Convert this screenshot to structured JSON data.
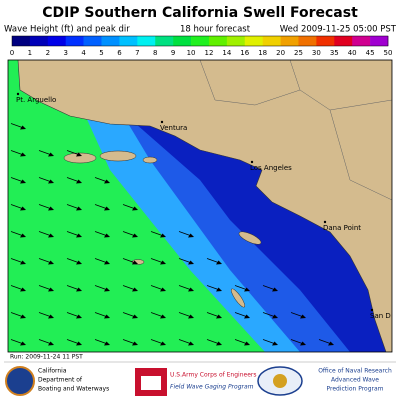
{
  "header": {
    "title": "CDIP Southern California Swell Forecast",
    "subtitle": "Wave Height (ft) and peak dir",
    "forecast_hour": "18 hour forecast",
    "valid_time": "Wed 2009-11-25 05:00 PST"
  },
  "legend": {
    "ticks": [
      0,
      1,
      2,
      3,
      4,
      5,
      6,
      7,
      8,
      9,
      10,
      12,
      14,
      16,
      18,
      20,
      25,
      30,
      35,
      40,
      45,
      50
    ],
    "colors": [
      "#000080",
      "#0000b8",
      "#0000e8",
      "#0030ff",
      "#0060ff",
      "#0090ff",
      "#00c0ff",
      "#00f0f0",
      "#00e080",
      "#00e040",
      "#20f020",
      "#60f000",
      "#a0f000",
      "#e0f000",
      "#f0d000",
      "#f0a000",
      "#f07000",
      "#f03000",
      "#e00020",
      "#d00090",
      "#a000d0"
    ]
  },
  "map": {
    "places": [
      "Pt. Arguello",
      "Ventura",
      "Los Angeles",
      "Dana Point",
      "San D"
    ]
  },
  "footer": {
    "run": "Run: 2009-11-24 11 PST",
    "logos": [
      {
        "lines": [
          "California",
          "Department of",
          "Boating and Waterways"
        ]
      },
      {
        "lines": [
          "U.S.Army Corps of Engineers",
          "Field Wave Gaging Program"
        ]
      },
      {
        "lines": [
          "Office of Naval Research",
          "Advanced Wave",
          "Prediction Program"
        ]
      }
    ]
  }
}
